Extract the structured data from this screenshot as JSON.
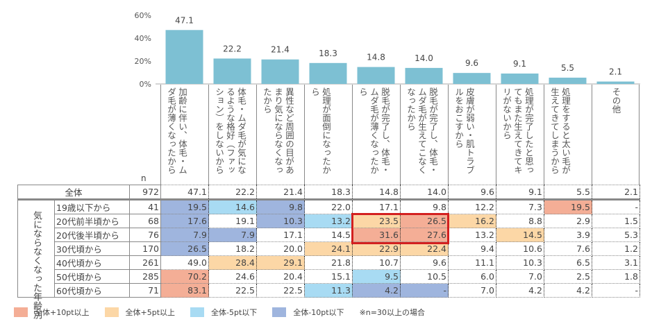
{
  "chart_data": {
    "type": "bar",
    "ylim": [
      0,
      60
    ],
    "yticks": [
      "0%",
      "20%",
      "40%",
      "60%"
    ],
    "bar_color": "#7DC0D3",
    "categories": [
      "加齢に伴い、体毛・ムダ毛が薄くなったから",
      "体毛・ムダ毛が気になるような格好（ファッション）をしないから",
      "異性など周囲の目があまり気にならなくなったから",
      "処理が面倒になったから",
      "脱毛が完了し、体毛・ムダ毛が薄くなったから",
      "脱毛が完了し、体毛・ムダ毛が生えてこなくなったから",
      "皮膚が弱い・肌トラブルをおこすから",
      "処理が完了したと思ってもまた生えてきてキリがないから",
      "処理をすると太い毛が生えてきてしまうから",
      "その他"
    ],
    "values": [
      47.1,
      22.2,
      21.4,
      18.3,
      14.8,
      14.0,
      9.6,
      9.1,
      5.5,
      2.1
    ],
    "value_labels": [
      "47.1",
      "22.2",
      "21.4",
      "18.3",
      "14.8",
      "14.0",
      "9.6",
      "9.1",
      "5.5",
      "2.1"
    ]
  },
  "table": {
    "n_header": "n",
    "group_label": "気にならなくなった年齢別",
    "total": {
      "label": "全体",
      "n": "972",
      "values": [
        "47.1",
        "22.2",
        "21.4",
        "18.3",
        "14.8",
        "14.0",
        "9.6",
        "9.1",
        "5.5",
        "2.1"
      ]
    },
    "rows": [
      {
        "label": "19歳以下から",
        "n": "41",
        "values": [
          "19.5",
          "14.6",
          "9.8",
          "22.0",
          "17.1",
          "9.8",
          "12.2",
          "7.3",
          "19.5",
          "-"
        ],
        "marks": [
          "db",
          "lb",
          "db",
          "",
          "",
          "",
          "",
          "",
          "r",
          ""
        ]
      },
      {
        "label": "20代前半頃から",
        "n": "68",
        "values": [
          "17.6",
          "19.1",
          "10.3",
          "13.2",
          "23.5",
          "26.5",
          "16.2",
          "8.8",
          "2.9",
          "1.5"
        ],
        "marks": [
          "db",
          "",
          "db",
          "lb",
          "o",
          "r",
          "o",
          "",
          "",
          ""
        ]
      },
      {
        "label": "20代後半頃から",
        "n": "76",
        "values": [
          "7.9",
          "7.9",
          "17.1",
          "14.5",
          "31.6",
          "27.6",
          "13.2",
          "14.5",
          "3.9",
          "5.3"
        ],
        "marks": [
          "db",
          "db",
          "",
          "",
          "r",
          "r",
          "",
          "o",
          "",
          ""
        ]
      },
      {
        "label": "30代頃から",
        "n": "170",
        "values": [
          "26.5",
          "18.2",
          "20.0",
          "24.1",
          "22.9",
          "22.4",
          "9.4",
          "10.6",
          "7.6",
          "1.2"
        ],
        "marks": [
          "db",
          "",
          "",
          "o",
          "o",
          "o",
          "",
          "",
          "",
          ""
        ]
      },
      {
        "label": "40代頃から",
        "n": "261",
        "values": [
          "49.0",
          "28.4",
          "29.1",
          "21.8",
          "10.7",
          "9.6",
          "11.1",
          "10.3",
          "6.5",
          "3.1"
        ],
        "marks": [
          "",
          "o",
          "o",
          "",
          "",
          "",
          "",
          "",
          "",
          ""
        ]
      },
      {
        "label": "50代頃から",
        "n": "285",
        "values": [
          "70.2",
          "24.6",
          "20.4",
          "15.1",
          "9.5",
          "10.5",
          "6.0",
          "7.0",
          "2.5",
          "1.8"
        ],
        "marks": [
          "r",
          "",
          "",
          "",
          "lb",
          "",
          "",
          "",
          "",
          ""
        ]
      },
      {
        "label": "60代頃から",
        "n": "71",
        "values": [
          "83.1",
          "22.5",
          "22.5",
          "11.3",
          "4.2",
          "-",
          "7.0",
          "4.2",
          "4.2",
          "-"
        ],
        "marks": [
          "r",
          "",
          "",
          "lb",
          "db",
          "db",
          "",
          "",
          "",
          ""
        ]
      }
    ]
  },
  "legend": {
    "items": [
      {
        "label": "全体+10pt以上",
        "color": "#F4AE96"
      },
      {
        "label": "全体+5pt以上",
        "color": "#FCD7A6"
      },
      {
        "label": "全体-5pt以下",
        "color": "#A8DBF3"
      },
      {
        "label": "全体-10pt以下",
        "color": "#9FB5DE"
      }
    ],
    "note": "※n=30以上の場合"
  }
}
